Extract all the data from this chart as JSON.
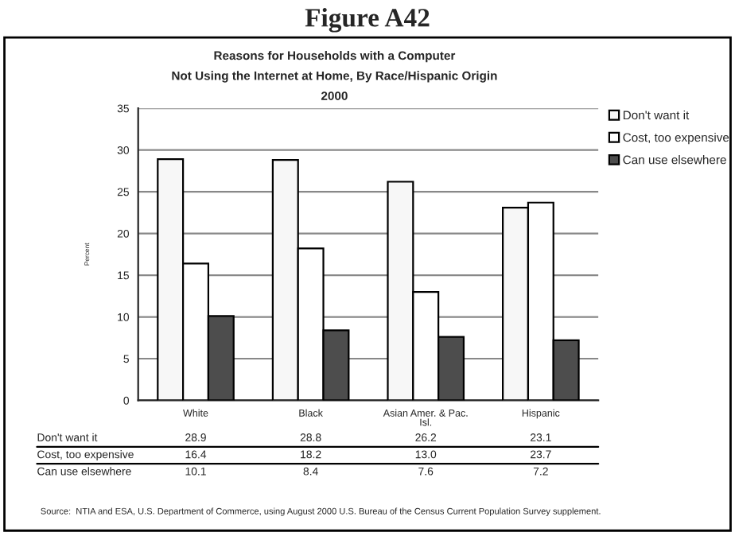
{
  "chart_data": {
    "type": "bar",
    "title": "Figure A42",
    "subtitle": "Reasons for Households with a Computer\nNot Using the Internet at Home, By Race/Hispanic Origin\n2000",
    "ylabel": "Percent",
    "categories": [
      "White",
      "Black",
      "Asian Amer. & Pac.\nIsl.",
      "Hispanic"
    ],
    "series": [
      {
        "name": "Don't want it",
        "color": "#f7f7f7",
        "values": [
          28.9,
          28.8,
          26.2,
          23.1
        ],
        "value_labels": [
          "28.9",
          "28.8",
          "26.2",
          "23.1"
        ]
      },
      {
        "name": "Cost, too expensive",
        "color": "#ffffff",
        "values": [
          16.4,
          18.2,
          13.0,
          23.7
        ],
        "value_labels": [
          "16.4",
          "18.2",
          "13.0",
          "23.7"
        ]
      },
      {
        "name": "Can use elsewhere",
        "color": "#4d4d4d",
        "values": [
          10.1,
          8.4,
          7.6,
          7.2
        ],
        "value_labels": [
          "10.1",
          "8.4",
          "7.6",
          "7.2"
        ]
      }
    ],
    "ylim": [
      0,
      35
    ],
    "yticks": [
      0,
      5,
      10,
      15,
      20,
      25,
      30,
      35
    ],
    "grid": "y",
    "legend": "top right",
    "annotations": [
      "Source:  NTIA and ESA, U.S. Department of Commerce, using August 2000 U.S. Bureau of the Census Current Population Survey supplement."
    ]
  }
}
